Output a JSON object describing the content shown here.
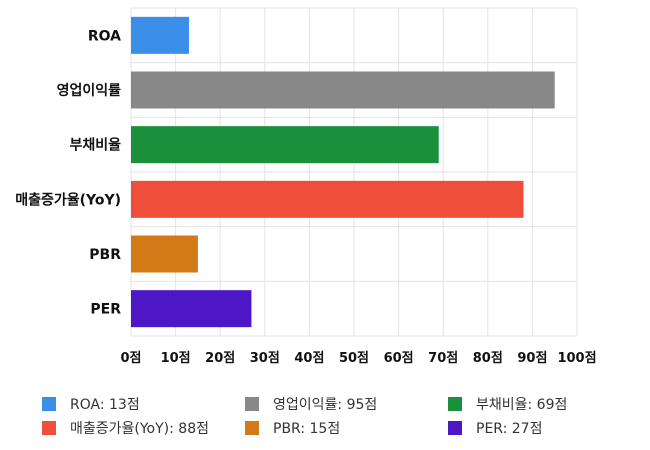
{
  "chart_data": {
    "type": "bar",
    "orientation": "horizontal",
    "categories": [
      "ROA",
      "영업이익률",
      "부채비율",
      "매출증가율(YoY)",
      "PBR",
      "PER"
    ],
    "values": [
      13,
      95,
      69,
      88,
      15,
      27
    ],
    "colors": [
      "#3b8fe8",
      "#888888",
      "#18913a",
      "#ee4e3a",
      "#d17a17",
      "#4d17c6"
    ],
    "xlim": [
      0,
      100
    ],
    "xticks": [
      0,
      10,
      20,
      30,
      40,
      50,
      60,
      70,
      80,
      90,
      100
    ],
    "tick_suffix": "점",
    "grid": true,
    "legend_position": "bottom",
    "legend": [
      "ROA: 13점",
      "영업이익률: 95점",
      "부채비율: 69점",
      "매출증가율(YoY): 88점",
      "PBR: 15점",
      "PER: 27점"
    ]
  }
}
